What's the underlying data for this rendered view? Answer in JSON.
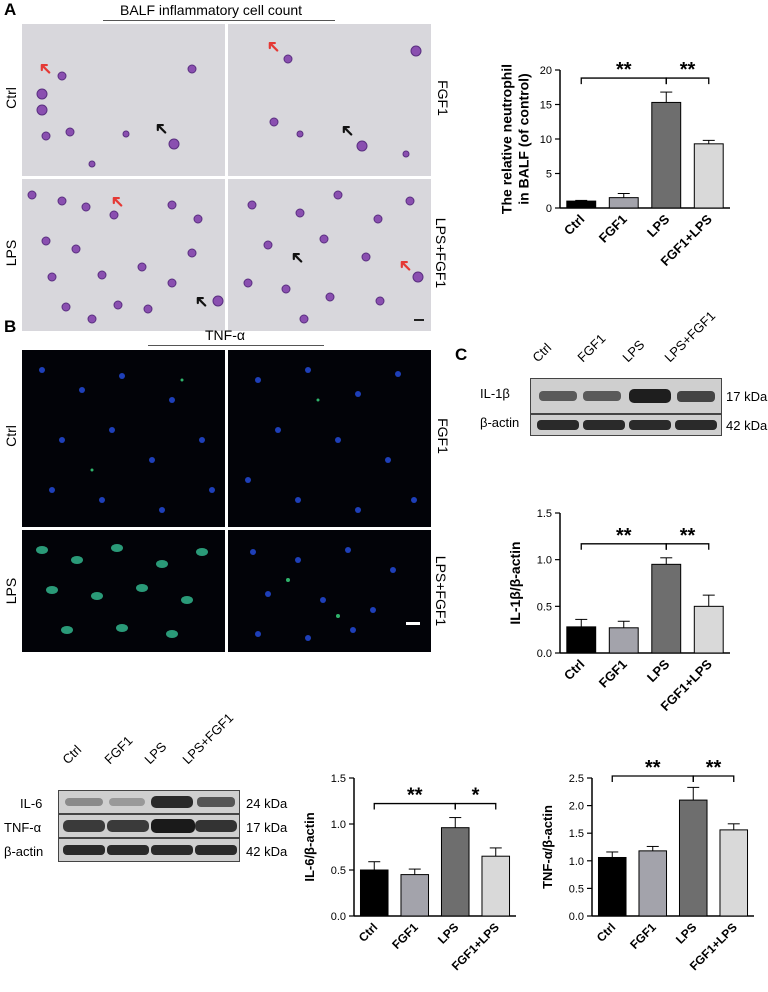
{
  "panels": {
    "a": "A",
    "b": "B",
    "c": "C"
  },
  "panel_a": {
    "header": "BALF inflammatory cell count",
    "labels": {
      "ctrl": "Ctrl",
      "fgf1": "FGF1",
      "lps": "LPS",
      "lps_fgf1": "LPS+FGF1"
    }
  },
  "panel_b": {
    "header": "TNF-α",
    "labels": {
      "ctrl": "Ctrl",
      "fgf1": "FGF1",
      "lps": "LPS",
      "lps_fgf1": "LPS+FGF1"
    }
  },
  "blot_c": {
    "lanes": [
      "Ctrl",
      "FGF1",
      "LPS",
      "LPS+FGF1"
    ],
    "rows": [
      {
        "name": "IL-1β",
        "size": "17 kDa"
      },
      {
        "name": "β-actin",
        "size": "42 kDa"
      }
    ]
  },
  "blot_d": {
    "lanes": [
      "Ctrl",
      "FGF1",
      "LPS",
      "LPS+FGF1"
    ],
    "rows": [
      {
        "name": "IL-6",
        "size": "24 kDa"
      },
      {
        "name": "TNF-α",
        "size": "17 kDa"
      },
      {
        "name": "β-actin",
        "size": "42 kDa"
      }
    ]
  },
  "colors": {
    "ctrl": "#000000",
    "fgf1": "#a3a3ab",
    "lps": "#6e6e6e",
    "fgf1_lps": "#d9d9d9"
  },
  "chart_data": [
    {
      "id": "neutrophil",
      "type": "bar",
      "categories": [
        "Ctrl",
        "FGF1",
        "LPS",
        "FGF1+LPS"
      ],
      "values": [
        1.0,
        1.5,
        15.3,
        9.3
      ],
      "errors": [
        0.1,
        0.6,
        1.5,
        0.5
      ],
      "ylabel": "The relative neutrophil\nin BALF (of control)",
      "ylim": [
        0,
        20
      ],
      "yticks": [
        "0",
        "5",
        "10",
        "15",
        "20"
      ],
      "significance": [
        {
          "from": 0,
          "to": 2,
          "label": "**"
        },
        {
          "from": 2,
          "to": 3,
          "label": "**"
        }
      ]
    },
    {
      "id": "il1b",
      "type": "bar",
      "categories": [
        "Ctrl",
        "FGF1",
        "LPS",
        "FGF1+LPS"
      ],
      "values": [
        0.28,
        0.27,
        0.95,
        0.5
      ],
      "errors": [
        0.08,
        0.07,
        0.07,
        0.12
      ],
      "ylabel": "IL-1β/β-actin",
      "ylim": [
        0,
        1.5
      ],
      "yticks": [
        "0.0",
        "0.5",
        "1.0",
        "1.5"
      ],
      "significance": [
        {
          "from": 0,
          "to": 2,
          "label": "**"
        },
        {
          "from": 2,
          "to": 3,
          "label": "**"
        }
      ]
    },
    {
      "id": "il6",
      "type": "bar",
      "categories": [
        "Ctrl",
        "FGF1",
        "LPS",
        "FGF1+LPS"
      ],
      "values": [
        0.5,
        0.45,
        0.96,
        0.65
      ],
      "errors": [
        0.09,
        0.06,
        0.11,
        0.09
      ],
      "ylabel": "IL-6/β-actin",
      "ylim": [
        0,
        1.5
      ],
      "yticks": [
        "0.0",
        "0.5",
        "1.0",
        "1.5"
      ],
      "significance": [
        {
          "from": 0,
          "to": 2,
          "label": "**"
        },
        {
          "from": 2,
          "to": 3,
          "label": "*"
        }
      ]
    },
    {
      "id": "tnfa",
      "type": "bar",
      "categories": [
        "Ctrl",
        "FGF1",
        "LPS",
        "FGF1+LPS"
      ],
      "values": [
        1.06,
        1.18,
        2.1,
        1.56
      ],
      "errors": [
        0.1,
        0.08,
        0.23,
        0.11
      ],
      "ylabel": "TNF-α/β-actin",
      "ylim": [
        0,
        2.5
      ],
      "yticks": [
        "0.0",
        "0.5",
        "1.0",
        "1.5",
        "2.0",
        "2.5"
      ],
      "significance": [
        {
          "from": 0,
          "to": 2,
          "label": "**"
        },
        {
          "from": 2,
          "to": 3,
          "label": "**"
        }
      ]
    }
  ]
}
